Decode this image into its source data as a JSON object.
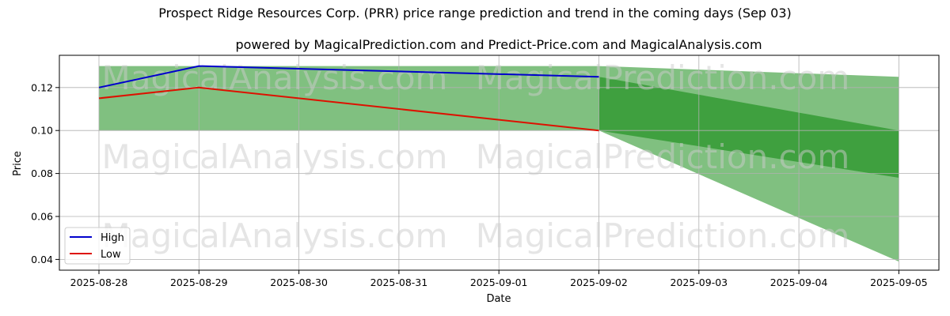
{
  "chart_data": {
    "type": "line",
    "title": "Prospect Ridge Resources Corp. (PRR) price range prediction and trend in the coming days (Sep 03)",
    "subtitle": "powered by MagicalPrediction.com and Predict-Price.com and MagicalAnalysis.com",
    "xlabel": "Date",
    "ylabel": "Price",
    "x": [
      "2025-08-28",
      "2025-08-29",
      "2025-08-30",
      "2025-08-31",
      "2025-09-01",
      "2025-09-02",
      "2025-09-03",
      "2025-09-04",
      "2025-09-05"
    ],
    "ylim": [
      0.035,
      0.135
    ],
    "yticks": [
      "0.04",
      "0.06",
      "0.08",
      "0.10",
      "0.12"
    ],
    "grid": true,
    "legend_position": "lower-left",
    "series": [
      {
        "name": "High",
        "color": "#0000cc",
        "x": [
          "2025-08-28",
          "2025-08-29",
          "2025-09-02"
        ],
        "values": [
          0.12,
          0.13,
          0.125
        ]
      },
      {
        "name": "Low",
        "color": "#dd1100",
        "x": [
          "2025-08-28",
          "2025-08-29",
          "2025-09-02"
        ],
        "values": [
          0.115,
          0.12,
          0.1
        ]
      }
    ],
    "bands": [
      {
        "color": "#80c080",
        "upper": {
          "x": [
            "2025-08-28",
            "2025-09-02",
            "2025-09-05"
          ],
          "values": [
            0.13,
            0.13,
            0.125
          ]
        },
        "lower": {
          "x": [
            "2025-08-28",
            "2025-09-02",
            "2025-09-05"
          ],
          "values": [
            0.1,
            0.1,
            0.039
          ]
        }
      },
      {
        "color": "#3fa03f",
        "upper": {
          "x": [
            "2025-09-02",
            "2025-09-05"
          ],
          "values": [
            0.125,
            0.1
          ]
        },
        "lower": {
          "x": [
            "2025-09-02",
            "2025-09-05"
          ],
          "values": [
            0.1,
            0.078
          ]
        }
      }
    ],
    "watermarks": [
      "MagicalAnalysis.com",
      "MagicalPrediction.com"
    ]
  }
}
